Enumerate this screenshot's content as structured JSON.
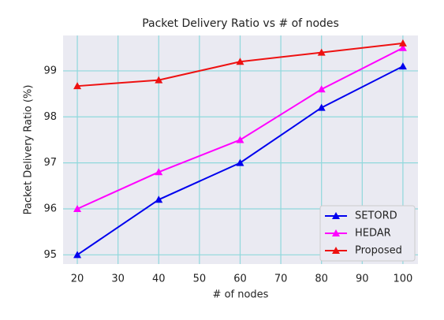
{
  "chart_data": {
    "type": "line",
    "title": "Packet Delivery Ratio vs # of nodes",
    "x_label": "# of nodes",
    "y_label": "Packet Delivery Ratio (%)",
    "x": [
      20,
      40,
      60,
      80,
      100
    ],
    "series": [
      {
        "name": "SETORD",
        "color": "#0000ee",
        "values": [
          95,
          96.2,
          97,
          98.2,
          99.1
        ]
      },
      {
        "name": "HEDAR",
        "color": "#ff00ff",
        "values": [
          96,
          96.8,
          97.5,
          98.6,
          99.5
        ]
      },
      {
        "name": "Proposed",
        "color": "#ee1111",
        "values": [
          98.67,
          98.8,
          99.2,
          99.4,
          99.6
        ]
      }
    ],
    "xlim": [
      16.5,
      103.7
    ],
    "xticks": [
      20,
      30,
      40,
      50,
      60,
      70,
      80,
      90,
      100
    ],
    "ylim": [
      94.8,
      99.77
    ],
    "yticks": [
      95,
      96,
      97,
      98,
      99
    ],
    "grid": true,
    "legend": "lower right"
  }
}
